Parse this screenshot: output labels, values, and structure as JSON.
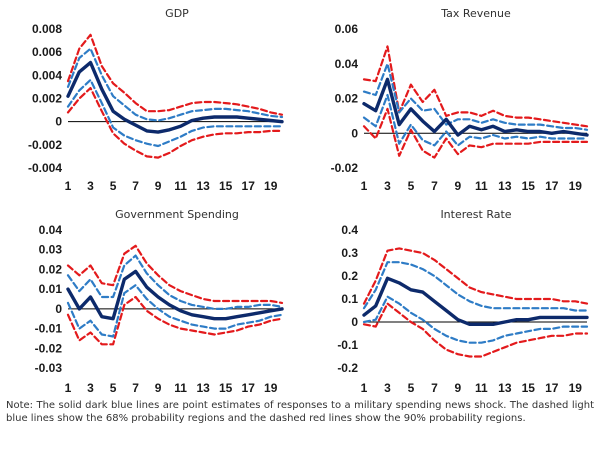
{
  "colors": {
    "point": "#0d2a6b",
    "band68": "#2e7cc6",
    "band90": "#e31a1c",
    "axis": "#000000"
  },
  "note": "Note: The solid dark blue lines are point estimates of responses to a military spending news shock. The dashed light blue lines show the 68% probability regions and the dashed red lines show the 90% probability regions.",
  "chart_data": [
    {
      "type": "line",
      "title": "GDP",
      "x": [
        1,
        2,
        3,
        4,
        5,
        6,
        7,
        8,
        9,
        10,
        11,
        12,
        13,
        14,
        15,
        16,
        17,
        18,
        19,
        20
      ],
      "xticks": [
        1,
        3,
        5,
        7,
        9,
        11,
        13,
        15,
        17,
        19
      ],
      "xtick_labels": [
        "1",
        "3",
        "5",
        "7",
        "9",
        "11",
        "13",
        "15",
        "17",
        "19"
      ],
      "yticks": [
        -0.004,
        -0.002,
        0,
        0.002,
        0.004,
        0.006,
        0.008
      ],
      "ytick_labels": [
        "-0.004",
        "-0.002",
        "0",
        "0.002",
        "0.004",
        "0.006",
        "0.008"
      ],
      "ylim": [
        -0.004,
        0.008
      ],
      "series": [
        {
          "role": "upper90",
          "values": [
            0.0035,
            0.0063,
            0.0075,
            0.0048,
            0.0033,
            0.0025,
            0.0016,
            0.0009,
            0.0009,
            0.001,
            0.0013,
            0.0016,
            0.0017,
            0.0017,
            0.0016,
            0.0015,
            0.0013,
            0.0011,
            0.0008,
            0.0006
          ]
        },
        {
          "role": "upper68",
          "values": [
            0.003,
            0.0055,
            0.0063,
            0.004,
            0.0022,
            0.0014,
            0.0006,
            0.0002,
            0.0001,
            0.0003,
            0.0006,
            0.0009,
            0.001,
            0.0011,
            0.0011,
            0.001,
            0.0009,
            0.0007,
            0.0005,
            0.0004
          ]
        },
        {
          "role": "point",
          "values": [
            0.0022,
            0.0043,
            0.0051,
            0.0028,
            0.0009,
            0.0002,
            -0.0003,
            -0.0008,
            -0.0009,
            -0.0007,
            -0.0004,
            0.0001,
            0.0003,
            0.0004,
            0.0004,
            0.0004,
            0.0003,
            0.0002,
            0.0001,
            0.0
          ]
        },
        {
          "role": "lower68",
          "values": [
            0.0013,
            0.0027,
            0.0036,
            0.0016,
            -0.0005,
            -0.0012,
            -0.0016,
            -0.0019,
            -0.0021,
            -0.0017,
            -0.0013,
            -0.0008,
            -0.0005,
            -0.0004,
            -0.0004,
            -0.0004,
            -0.0004,
            -0.0004,
            -0.0004,
            -0.0004
          ]
        },
        {
          "role": "lower90",
          "values": [
            0.0008,
            0.002,
            0.0029,
            0.0009,
            -0.001,
            -0.0019,
            -0.0025,
            -0.003,
            -0.0031,
            -0.0027,
            -0.0021,
            -0.0016,
            -0.0013,
            -0.0011,
            -0.001,
            -0.001,
            -0.0009,
            -0.0009,
            -0.0008,
            -0.0008
          ]
        }
      ]
    },
    {
      "type": "line",
      "title": "Tax Revenue",
      "x": [
        1,
        2,
        3,
        4,
        5,
        6,
        7,
        8,
        9,
        10,
        11,
        12,
        13,
        14,
        15,
        16,
        17,
        18,
        19,
        20
      ],
      "xticks": [
        1,
        3,
        5,
        7,
        9,
        11,
        13,
        15,
        17,
        19
      ],
      "xtick_labels": [
        "1",
        "3",
        "5",
        "7",
        "9",
        "11",
        "13",
        "15",
        "17",
        "19"
      ],
      "yticks": [
        -0.02,
        0,
        0.02,
        0.04,
        0.06
      ],
      "ytick_labels": [
        "-0.02",
        "0",
        "0.02",
        "0.04",
        "0.06"
      ],
      "ylim": [
        -0.02,
        0.06
      ],
      "series": [
        {
          "role": "upper90",
          "values": [
            0.031,
            0.03,
            0.05,
            0.012,
            0.028,
            0.018,
            0.025,
            0.01,
            0.012,
            0.012,
            0.01,
            0.013,
            0.01,
            0.009,
            0.009,
            0.008,
            0.007,
            0.006,
            0.005,
            0.004
          ]
        },
        {
          "role": "upper68",
          "values": [
            0.024,
            0.022,
            0.04,
            0.012,
            0.02,
            0.013,
            0.014,
            0.005,
            0.008,
            0.008,
            0.006,
            0.008,
            0.006,
            0.005,
            0.005,
            0.005,
            0.004,
            0.003,
            0.003,
            0.002
          ]
        },
        {
          "role": "point",
          "values": [
            0.017,
            0.013,
            0.031,
            0.005,
            0.014,
            0.007,
            0.001,
            0.008,
            -0.001,
            0.004,
            0.002,
            0.004,
            0.001,
            0.002,
            0.001,
            0.001,
            0.0,
            0.001,
            0.0,
            -0.001
          ]
        },
        {
          "role": "lower68",
          "values": [
            0.009,
            0.004,
            0.022,
            -0.006,
            0.005,
            -0.004,
            -0.007,
            0.001,
            -0.007,
            -0.002,
            -0.003,
            -0.001,
            -0.003,
            -0.002,
            -0.003,
            -0.002,
            -0.003,
            -0.003,
            -0.003,
            -0.003
          ]
        },
        {
          "role": "lower90",
          "values": [
            0.004,
            -0.003,
            0.014,
            -0.013,
            0.002,
            -0.01,
            -0.014,
            -0.003,
            -0.012,
            -0.007,
            -0.008,
            -0.006,
            -0.006,
            -0.006,
            -0.006,
            -0.005,
            -0.005,
            -0.005,
            -0.005,
            -0.005
          ]
        }
      ]
    },
    {
      "type": "line",
      "title": "Government Spending",
      "x": [
        1,
        2,
        3,
        4,
        5,
        6,
        7,
        8,
        9,
        10,
        11,
        12,
        13,
        14,
        15,
        16,
        17,
        18,
        19,
        20
      ],
      "xticks": [
        1,
        3,
        5,
        7,
        9,
        11,
        13,
        15,
        17,
        19
      ],
      "xtick_labels": [
        "1",
        "3",
        "5",
        "7",
        "9",
        "11",
        "13",
        "15",
        "17",
        "19"
      ],
      "yticks": [
        -0.03,
        -0.02,
        -0.01,
        0,
        0.01,
        0.02,
        0.03,
        0.04
      ],
      "ytick_labels": [
        "-0.03",
        "-0.02",
        "-0.01",
        "0",
        "0.01",
        "0.02",
        "0.03",
        "0.04"
      ],
      "ylim": [
        -0.03,
        0.04
      ],
      "series": [
        {
          "role": "upper90",
          "values": [
            0.022,
            0.017,
            0.022,
            0.013,
            0.012,
            0.028,
            0.032,
            0.023,
            0.017,
            0.012,
            0.009,
            0.007,
            0.005,
            0.004,
            0.004,
            0.004,
            0.004,
            0.004,
            0.004,
            0.003
          ]
        },
        {
          "role": "upper68",
          "values": [
            0.017,
            0.009,
            0.015,
            0.006,
            0.006,
            0.022,
            0.027,
            0.018,
            0.012,
            0.007,
            0.004,
            0.002,
            0.001,
            0.0,
            0.0,
            0.001,
            0.001,
            0.002,
            0.002,
            0.001
          ]
        },
        {
          "role": "point",
          "values": [
            0.01,
            0.0,
            0.006,
            -0.004,
            -0.005,
            0.015,
            0.019,
            0.011,
            0.006,
            0.002,
            -0.001,
            -0.003,
            -0.004,
            -0.005,
            -0.005,
            -0.004,
            -0.003,
            -0.002,
            -0.001,
            0.0
          ]
        },
        {
          "role": "lower68",
          "values": [
            0.003,
            -0.01,
            -0.006,
            -0.013,
            -0.014,
            0.008,
            0.012,
            0.005,
            0.0,
            -0.004,
            -0.006,
            -0.008,
            -0.009,
            -0.01,
            -0.01,
            -0.008,
            -0.007,
            -0.006,
            -0.004,
            -0.003
          ]
        },
        {
          "role": "lower90",
          "values": [
            -0.003,
            -0.016,
            -0.012,
            -0.018,
            -0.018,
            0.002,
            0.006,
            -0.001,
            -0.005,
            -0.008,
            -0.01,
            -0.011,
            -0.012,
            -0.013,
            -0.012,
            -0.011,
            -0.009,
            -0.008,
            -0.006,
            -0.005
          ]
        }
      ]
    },
    {
      "type": "line",
      "title": "Interest Rate",
      "x": [
        1,
        2,
        3,
        4,
        5,
        6,
        7,
        8,
        9,
        10,
        11,
        12,
        13,
        14,
        15,
        16,
        17,
        18,
        19,
        20
      ],
      "xticks": [
        1,
        3,
        5,
        7,
        9,
        11,
        13,
        15,
        17,
        19
      ],
      "xtick_labels": [
        "1",
        "3",
        "5",
        "7",
        "9",
        "11",
        "13",
        "15",
        "17",
        "19"
      ],
      "yticks": [
        -0.2,
        -0.1,
        0,
        0.1,
        0.2,
        0.3,
        0.4
      ],
      "ytick_labels": [
        "-0.2",
        "-0.1",
        "0",
        "0.1",
        "0.2",
        "0.3",
        "0.4"
      ],
      "ylim": [
        -0.2,
        0.4
      ],
      "series": [
        {
          "role": "upper90",
          "values": [
            0.08,
            0.18,
            0.31,
            0.32,
            0.31,
            0.3,
            0.27,
            0.23,
            0.19,
            0.15,
            0.13,
            0.12,
            0.11,
            0.1,
            0.1,
            0.1,
            0.1,
            0.09,
            0.09,
            0.08
          ]
        },
        {
          "role": "upper68",
          "values": [
            0.06,
            0.14,
            0.26,
            0.26,
            0.25,
            0.23,
            0.2,
            0.16,
            0.12,
            0.09,
            0.07,
            0.06,
            0.06,
            0.06,
            0.06,
            0.06,
            0.06,
            0.06,
            0.05,
            0.05
          ]
        },
        {
          "role": "point",
          "values": [
            0.03,
            0.07,
            0.19,
            0.17,
            0.14,
            0.13,
            0.09,
            0.05,
            0.01,
            -0.01,
            -0.01,
            -0.01,
            0.0,
            0.01,
            0.01,
            0.02,
            0.02,
            0.02,
            0.02,
            0.02
          ]
        },
        {
          "role": "lower68",
          "values": [
            0.0,
            0.01,
            0.11,
            0.08,
            0.04,
            0.01,
            -0.03,
            -0.06,
            -0.08,
            -0.09,
            -0.09,
            -0.08,
            -0.06,
            -0.05,
            -0.04,
            -0.03,
            -0.03,
            -0.02,
            -0.02,
            -0.02
          ]
        },
        {
          "role": "lower90",
          "values": [
            -0.01,
            -0.02,
            0.08,
            0.04,
            0.0,
            -0.03,
            -0.08,
            -0.12,
            -0.14,
            -0.15,
            -0.15,
            -0.13,
            -0.11,
            -0.09,
            -0.08,
            -0.07,
            -0.06,
            -0.06,
            -0.05,
            -0.05
          ]
        }
      ]
    }
  ]
}
